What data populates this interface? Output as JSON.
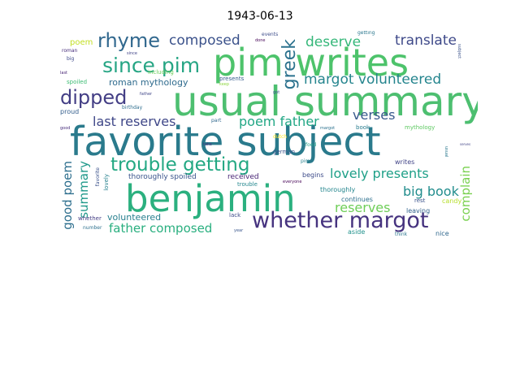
{
  "title": "1943-06-13",
  "words": [
    {
      "id": "favorite-subject",
      "text": "favorite subject",
      "color": "#2a7a8c"
    },
    {
      "id": "usual-summary",
      "text": "usual summary",
      "color": "#4dbf70"
    },
    {
      "id": "benjamin",
      "text": "benjamin",
      "color": "#2bb07f"
    },
    {
      "id": "pim-writes",
      "text": "pim writes",
      "color": "#4dc36b"
    },
    {
      "id": "whether-margot",
      "text": "whether margot",
      "color": "#46337f"
    },
    {
      "id": "trouble-getting",
      "text": "trouble getting",
      "color": "#23a883"
    },
    {
      "id": "since-pim",
      "text": "since pim",
      "color": "#26a584"
    },
    {
      "id": "rhyme",
      "text": "rhyme",
      "color": "#31688e"
    },
    {
      "id": "dipped",
      "text": "dipped",
      "color": "#433e85"
    },
    {
      "id": "composed",
      "text": "composed",
      "color": "#3b528b"
    },
    {
      "id": "greek",
      "text": "greek",
      "color": "#2c728e"
    },
    {
      "id": "deserve",
      "text": "deserve",
      "color": "#35b779"
    },
    {
      "id": "translate",
      "text": "translate",
      "color": "#3e4989"
    },
    {
      "id": "margot-volunteered",
      "text": "margot volunteered",
      "color": "#25858e"
    },
    {
      "id": "last-reserves",
      "text": "last reserves",
      "color": "#3f4788"
    },
    {
      "id": "poem-father",
      "text": "poem father",
      "color": "#22a785"
    },
    {
      "id": "verses",
      "text": "verses",
      "color": "#38598c"
    },
    {
      "id": "lovely-presents",
      "text": "lovely presents",
      "color": "#1fa088"
    },
    {
      "id": "big-book",
      "text": "big book",
      "color": "#228d8d"
    },
    {
      "id": "reserves",
      "text": "reserves",
      "color": "#6ece58"
    },
    {
      "id": "complain",
      "text": "complain",
      "color": "#7ad151"
    },
    {
      "id": "good-poem",
      "text": "good poem",
      "color": "#2e6f8e"
    },
    {
      "id": "summary",
      "text": "summary",
      "color": "#1f998a"
    },
    {
      "id": "father-composed",
      "text": "father composed",
      "color": "#29af7f"
    },
    {
      "id": "volunteered",
      "text": "volunteered",
      "color": "#277f8e"
    },
    {
      "id": "roman-mythology",
      "text": "roman mythology",
      "color": "#2f6b8e"
    },
    {
      "id": "thoroughly-spoiled",
      "text": "thoroughly spoiled",
      "color": "#3a548c"
    },
    {
      "id": "received",
      "text": "received",
      "color": "#482475"
    },
    {
      "id": "begins",
      "text": "begins",
      "color": "#3e4c8a"
    },
    {
      "id": "thoroughly",
      "text": "thoroughly",
      "color": "#24868e"
    },
    {
      "id": "continues",
      "text": "continues",
      "color": "#2d708e"
    },
    {
      "id": "leaving",
      "text": "leaving",
      "color": "#33638d"
    },
    {
      "id": "rest",
      "text": "rest",
      "color": "#3b528b"
    },
    {
      "id": "aside",
      "text": "aside",
      "color": "#20928c"
    },
    {
      "id": "think",
      "text": "think",
      "color": "#2b758e"
    },
    {
      "id": "nice",
      "text": "nice",
      "color": "#31688e"
    },
    {
      "id": "candy",
      "text": "candy",
      "color": "#b5de2b"
    },
    {
      "id": "writes",
      "text": "writes",
      "color": "#414487"
    },
    {
      "id": "book",
      "text": "book",
      "color": "#287c8e"
    },
    {
      "id": "mythology",
      "text": "mythology",
      "color": "#5ec962"
    },
    {
      "id": "german",
      "text": "german",
      "color": "#3b528b"
    },
    {
      "id": "pim",
      "text": "pim",
      "color": "#26828e"
    },
    {
      "id": "dutch",
      "text": "dutch",
      "color": "#fde725"
    },
    {
      "id": "food",
      "text": "food",
      "color": "#1f9e89"
    },
    {
      "id": "trouble",
      "text": "trouble",
      "color": "#24878e"
    },
    {
      "id": "everyone",
      "text": "everyone",
      "color": "#440154"
    },
    {
      "id": "margot",
      "text": "margot",
      "color": "#2c718e"
    },
    {
      "id": "presents",
      "text": "presents",
      "color": "#365c8d"
    },
    {
      "id": "keep",
      "text": "keep",
      "color": "#90d743"
    },
    {
      "id": "got",
      "text": "got",
      "color": "#3b528b"
    },
    {
      "id": "part",
      "text": "part",
      "color": "#31688e"
    },
    {
      "id": "take",
      "text": "take",
      "color": "#46327e"
    },
    {
      "id": "birthday",
      "text": "birthday",
      "color": "#2e6e8e"
    },
    {
      "id": "proud",
      "text": "proud",
      "color": "#355f8d"
    },
    {
      "id": "spoiled",
      "text": "spoiled",
      "color": "#3dbc74"
    },
    {
      "id": "father",
      "text": "father",
      "color": "#404688"
    },
    {
      "id": "good",
      "text": "good",
      "color": "#472d7b"
    },
    {
      "id": "favorite",
      "text": "favorite",
      "color": "#3b528b"
    },
    {
      "id": "lovely",
      "text": "lovely",
      "color": "#26818e"
    },
    {
      "id": "whether",
      "text": "whether",
      "color": "#433d84"
    },
    {
      "id": "number",
      "text": "number",
      "color": "#2d708e"
    },
    {
      "id": "lack",
      "text": "lack",
      "color": "#3e4a89"
    },
    {
      "id": "year",
      "text": "year",
      "color": "#39568c"
    },
    {
      "id": "poem",
      "text": "poem",
      "color": "#c2df23"
    },
    {
      "id": "roman",
      "text": "roman",
      "color": "#472d7b"
    },
    {
      "id": "big",
      "text": "big",
      "color": "#3e4989"
    },
    {
      "id": "last",
      "text": "last",
      "color": "#482576"
    },
    {
      "id": "since",
      "text": "since",
      "color": "#414487"
    },
    {
      "id": "including",
      "text": "including",
      "color": "#6ccd5a"
    },
    {
      "id": "events",
      "text": "events",
      "color": "#3d4d8a"
    },
    {
      "id": "done",
      "text": "done",
      "color": "#450457"
    },
    {
      "id": "getting",
      "text": "getting",
      "color": "#2a778e"
    },
    {
      "id": "subject",
      "text": "subject",
      "color": "#3b528b"
    },
    {
      "id": "usual",
      "text": "usual",
      "color": "#2a788e"
    },
    {
      "id": "serves",
      "text": "serves",
      "color": "#414487"
    }
  ]
}
